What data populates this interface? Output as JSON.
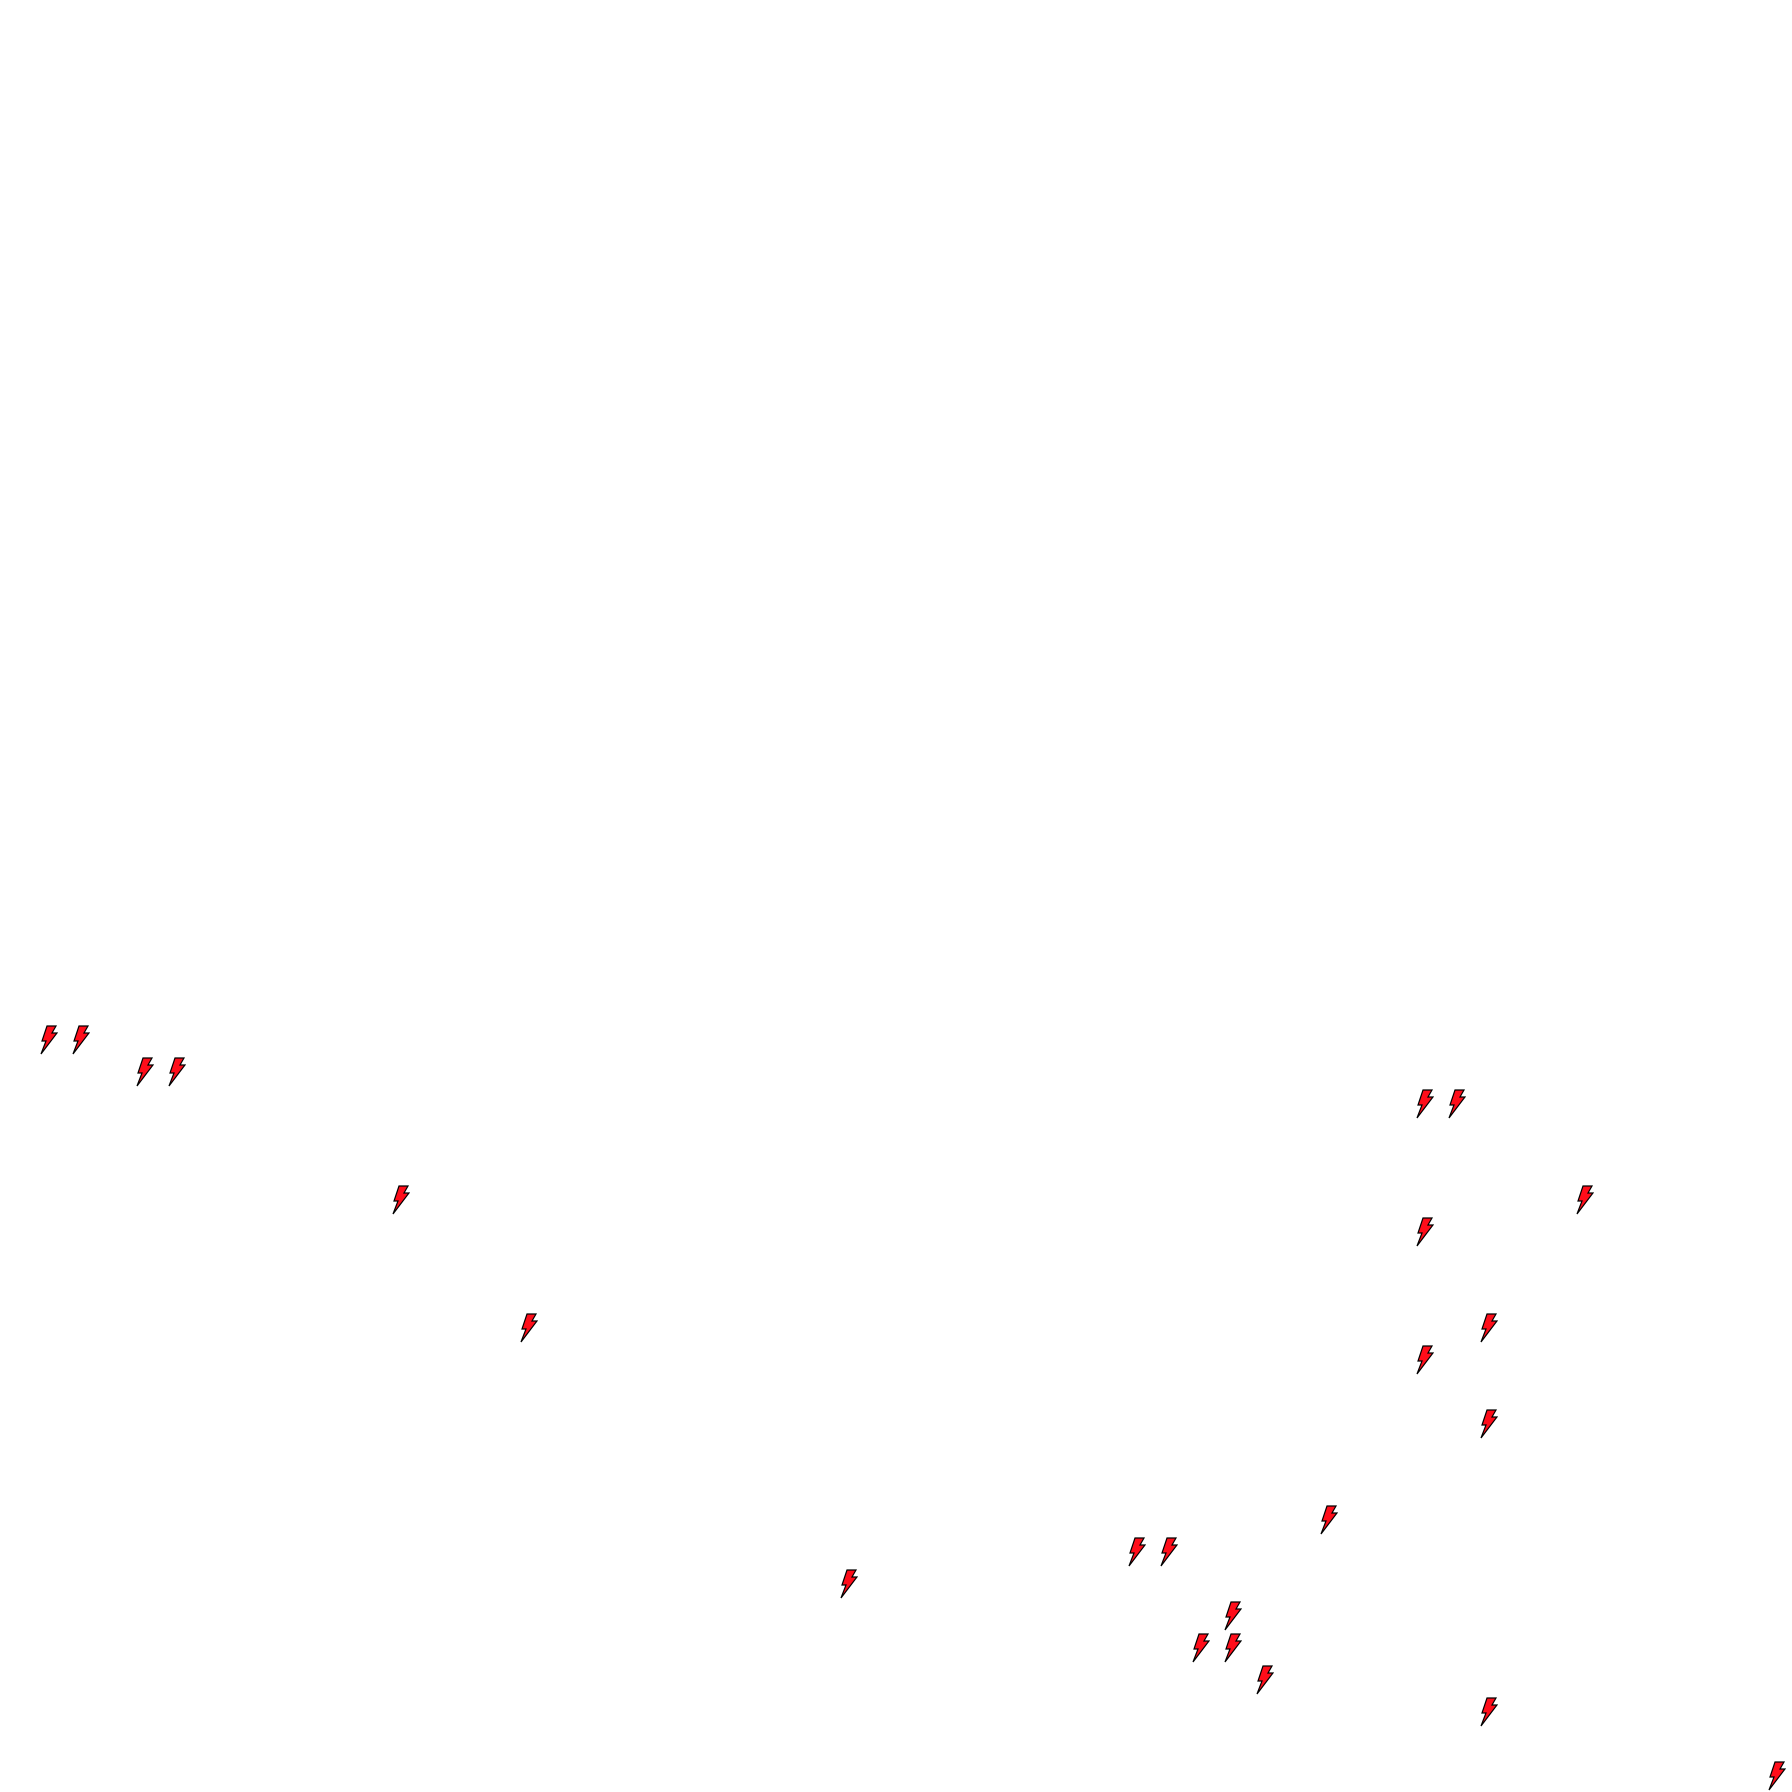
{
  "canvas": {
    "background": "#ffffff"
  },
  "markers": {
    "icon": "lightning-bolt-icon",
    "fill_color": "#ff0d1a",
    "stroke_color": "#000000"
  }
}
